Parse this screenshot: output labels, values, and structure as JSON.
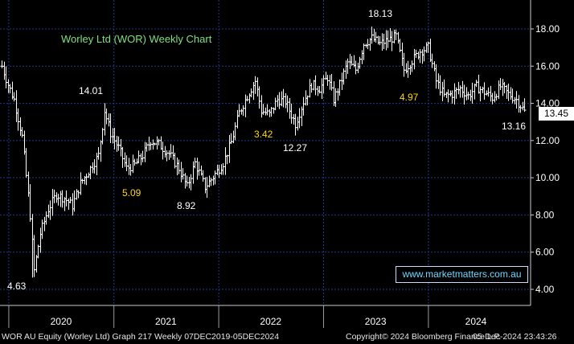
{
  "chart_data": {
    "type": "ohlc",
    "title": "Worley Ltd (WOR) Weekly Chart",
    "x_ticks": [
      "2020",
      "2021",
      "2022",
      "2023",
      "2024"
    ],
    "y_ticks": [
      "4.00",
      "6.00",
      "8.00",
      "10.00",
      "12.00",
      "14.00",
      "16.00",
      "18.00"
    ],
    "ylim": [
      3.8,
      18.9
    ],
    "grid": true,
    "last_price": "13.45",
    "annotations": [
      {
        "text": "4.63",
        "color": "white"
      },
      {
        "text": "14.01",
        "color": "white"
      },
      {
        "text": "5.09",
        "color": "yellow"
      },
      {
        "text": "8.92",
        "color": "white"
      },
      {
        "text": "3.42",
        "color": "yellow"
      },
      {
        "text": "12.27",
        "color": "white"
      },
      {
        "text": "18.13",
        "color": "white"
      },
      {
        "text": "4.97",
        "color": "yellow"
      },
      {
        "text": "13.16",
        "color": "white"
      }
    ],
    "series_anchors": [
      {
        "date": "2019-12-07",
        "close": 16.0
      },
      {
        "date": "2019-12-28",
        "close": 15.0
      },
      {
        "date": "2020-01-18",
        "close": 14.2
      },
      {
        "date": "2020-02-15",
        "close": 12.2
      },
      {
        "date": "2020-03-14",
        "close": 8.0
      },
      {
        "date": "2020-03-28",
        "close": 5.0
      },
      {
        "date": "2020-04-18",
        "close": 7.0
      },
      {
        "date": "2020-05-16",
        "close": 8.3
      },
      {
        "date": "2020-06-13",
        "close": 9.1
      },
      {
        "date": "2020-07-11",
        "close": 8.9
      },
      {
        "date": "2020-08-08",
        "close": 8.5
      },
      {
        "date": "2020-09-05",
        "close": 9.7
      },
      {
        "date": "2020-10-10",
        "close": 10.5
      },
      {
        "date": "2020-11-07",
        "close": 11.2
      },
      {
        "date": "2020-11-28",
        "close": 13.6
      },
      {
        "date": "2020-12-19",
        "close": 12.4
      },
      {
        "date": "2021-01-16",
        "close": 11.6
      },
      {
        "date": "2021-02-13",
        "close": 10.5
      },
      {
        "date": "2021-03-13",
        "close": 10.7
      },
      {
        "date": "2021-04-10",
        "close": 11.2
      },
      {
        "date": "2021-05-08",
        "close": 12.0
      },
      {
        "date": "2021-06-05",
        "close": 11.8
      },
      {
        "date": "2021-07-10",
        "close": 11.3
      },
      {
        "date": "2021-08-14",
        "close": 10.5
      },
      {
        "date": "2021-09-11",
        "close": 9.5
      },
      {
        "date": "2021-10-09",
        "close": 10.8
      },
      {
        "date": "2021-11-13",
        "close": 9.5
      },
      {
        "date": "2021-12-04",
        "close": 9.9
      },
      {
        "date": "2022-01-15",
        "close": 10.8
      },
      {
        "date": "2022-02-12",
        "close": 11.9
      },
      {
        "date": "2022-03-12",
        "close": 13.5
      },
      {
        "date": "2022-04-09",
        "close": 14.4
      },
      {
        "date": "2022-05-07",
        "close": 15.2
      },
      {
        "date": "2022-05-28",
        "close": 13.6
      },
      {
        "date": "2022-06-25",
        "close": 13.4
      },
      {
        "date": "2022-07-23",
        "close": 14.2
      },
      {
        "date": "2022-08-20",
        "close": 14.1
      },
      {
        "date": "2022-09-24",
        "close": 12.9
      },
      {
        "date": "2022-10-22",
        "close": 14.1
      },
      {
        "date": "2022-11-19",
        "close": 15.0
      },
      {
        "date": "2022-12-17",
        "close": 14.8
      },
      {
        "date": "2023-01-14",
        "close": 15.4
      },
      {
        "date": "2023-02-04",
        "close": 14.2
      },
      {
        "date": "2023-02-25",
        "close": 15.0
      },
      {
        "date": "2023-03-25",
        "close": 16.2
      },
      {
        "date": "2023-04-22",
        "close": 15.8
      },
      {
        "date": "2023-05-20",
        "close": 17.2
      },
      {
        "date": "2023-06-17",
        "close": 17.5
      },
      {
        "date": "2023-07-15",
        "close": 17.2
      },
      {
        "date": "2023-08-12",
        "close": 17.4
      },
      {
        "date": "2023-09-09",
        "close": 17.6
      },
      {
        "date": "2023-10-07",
        "close": 15.8
      },
      {
        "date": "2023-11-04",
        "close": 16.3
      },
      {
        "date": "2023-12-02",
        "close": 16.8
      },
      {
        "date": "2023-12-30",
        "close": 17.0
      },
      {
        "date": "2024-01-27",
        "close": 15.2
      },
      {
        "date": "2024-02-24",
        "close": 14.4
      },
      {
        "date": "2024-03-23",
        "close": 14.5
      },
      {
        "date": "2024-04-20",
        "close": 14.8
      },
      {
        "date": "2024-05-18",
        "close": 14.4
      },
      {
        "date": "2024-06-15",
        "close": 14.9
      },
      {
        "date": "2024-07-13",
        "close": 14.6
      },
      {
        "date": "2024-08-10",
        "close": 14.3
      },
      {
        "date": "2024-09-07",
        "close": 14.9
      },
      {
        "date": "2024-10-05",
        "close": 14.5
      },
      {
        "date": "2024-11-02",
        "close": 14.2
      },
      {
        "date": "2024-12-05",
        "close": 13.45
      }
    ]
  },
  "overlay": {
    "website": "www.marketmatters.com.au",
    "footer_left": "WOR AU Equity (Worley Ltd) Graph 217  Weekly 07DEC2019-05DEC2024",
    "footer_copyright": "Copyright© 2024 Bloomberg Finance L.P.",
    "footer_timestamp": "05-Dec-2024 23:43:26"
  },
  "colors": {
    "background": "#000000",
    "grid": "#1f3a8a",
    "bars": "#ffffff",
    "title": "#7fe07f",
    "annotation_yellow": "#ffd700"
  }
}
